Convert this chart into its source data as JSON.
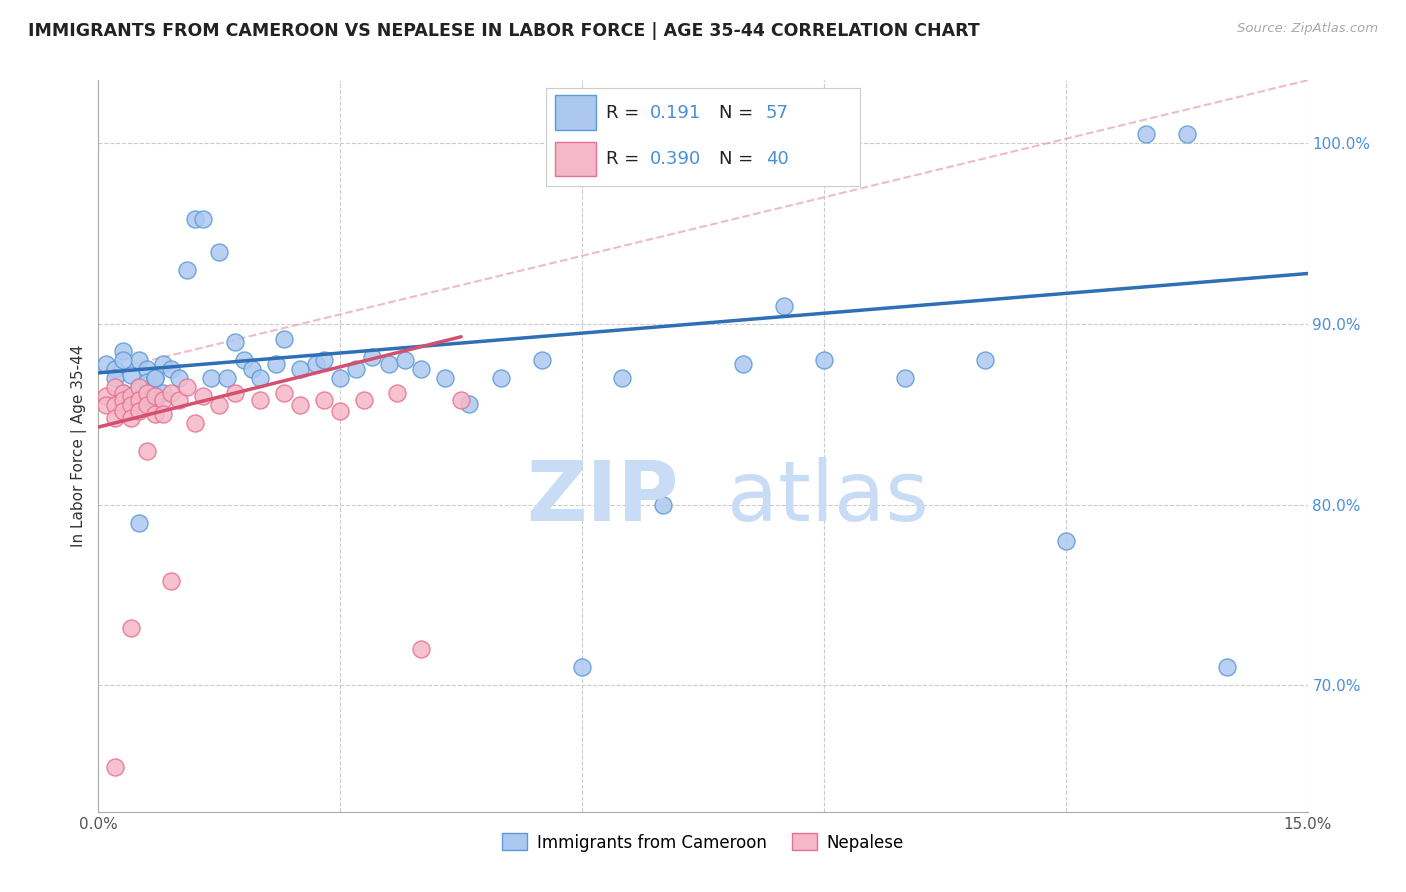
{
  "title": "IMMIGRANTS FROM CAMEROON VS NEPALESE IN LABOR FORCE | AGE 35-44 CORRELATION CHART",
  "source": "Source: ZipAtlas.com",
  "ylabel": "In Labor Force | Age 35-44",
  "xlim": [
    0.0,
    0.15
  ],
  "ylim": [
    0.63,
    1.035
  ],
  "xtick_positions": [
    0.0,
    0.03,
    0.06,
    0.09,
    0.12,
    0.15
  ],
  "xtick_labels": [
    "0.0%",
    "",
    "",
    "",
    "",
    "15.0%"
  ],
  "ytick_positions": [
    0.7,
    0.8,
    0.9,
    1.0
  ],
  "ytick_labels": [
    "70.0%",
    "80.0%",
    "90.0%",
    "100.0%"
  ],
  "color_blue_fill": "#adc8f0",
  "color_blue_edge": "#5b9bd5",
  "color_pink_fill": "#f5b8c8",
  "color_pink_edge": "#e87090",
  "color_blue_line": "#2e6fb5",
  "color_pink_line": "#d45070",
  "color_dash_line": "#e8a0b0",
  "watermark_zip_color": "#c8ddf5",
  "watermark_atlas_color": "#c8ddf5",
  "blue_x": [
    0.001,
    0.002,
    0.002,
    0.003,
    0.003,
    0.004,
    0.004,
    0.005,
    0.005,
    0.006,
    0.006,
    0.007,
    0.007,
    0.008,
    0.008,
    0.009,
    0.01,
    0.011,
    0.012,
    0.013,
    0.014,
    0.015,
    0.016,
    0.017,
    0.018,
    0.019,
    0.02,
    0.022,
    0.023,
    0.025,
    0.027,
    0.028,
    0.03,
    0.032,
    0.034,
    0.036,
    0.038,
    0.04,
    0.043,
    0.046,
    0.05,
    0.055,
    0.06,
    0.065,
    0.07,
    0.08,
    0.085,
    0.09,
    0.1,
    0.11,
    0.12,
    0.13,
    0.135,
    0.14,
    0.003,
    0.005,
    0.007
  ],
  "blue_y": [
    0.878,
    0.875,
    0.87,
    0.885,
    0.862,
    0.872,
    0.858,
    0.88,
    0.865,
    0.875,
    0.868,
    0.87,
    0.858,
    0.878,
    0.862,
    0.875,
    0.87,
    0.93,
    0.958,
    0.958,
    0.87,
    0.94,
    0.87,
    0.89,
    0.88,
    0.875,
    0.87,
    0.878,
    0.892,
    0.875,
    0.878,
    0.88,
    0.87,
    0.875,
    0.882,
    0.878,
    0.88,
    0.875,
    0.87,
    0.856,
    0.87,
    0.88,
    0.71,
    0.87,
    0.8,
    0.878,
    0.91,
    0.88,
    0.87,
    0.88,
    0.78,
    1.005,
    1.005,
    0.71,
    0.88,
    0.79,
    0.87
  ],
  "pink_x": [
    0.001,
    0.001,
    0.002,
    0.002,
    0.002,
    0.003,
    0.003,
    0.003,
    0.004,
    0.004,
    0.004,
    0.005,
    0.005,
    0.005,
    0.006,
    0.006,
    0.007,
    0.007,
    0.008,
    0.008,
    0.009,
    0.01,
    0.011,
    0.013,
    0.015,
    0.017,
    0.02,
    0.023,
    0.025,
    0.028,
    0.03,
    0.033,
    0.037,
    0.04,
    0.045,
    0.002,
    0.004,
    0.006,
    0.009,
    0.012
  ],
  "pink_y": [
    0.86,
    0.855,
    0.865,
    0.855,
    0.848,
    0.862,
    0.858,
    0.852,
    0.86,
    0.855,
    0.848,
    0.865,
    0.858,
    0.852,
    0.862,
    0.855,
    0.86,
    0.85,
    0.858,
    0.85,
    0.862,
    0.858,
    0.865,
    0.86,
    0.855,
    0.862,
    0.858,
    0.862,
    0.855,
    0.858,
    0.852,
    0.858,
    0.862,
    0.72,
    0.858,
    0.655,
    0.732,
    0.83,
    0.758,
    0.845
  ],
  "blue_line_x0": 0.0,
  "blue_line_x1": 0.15,
  "blue_line_y0": 0.873,
  "blue_line_y1": 0.928,
  "pink_line_x0": 0.0,
  "pink_line_x1": 0.045,
  "pink_line_y0": 0.843,
  "pink_line_y1": 0.893,
  "dash_line_x0": 0.0,
  "dash_line_x1": 0.15,
  "dash_line_y0": 0.873,
  "dash_line_y1": 1.035
}
